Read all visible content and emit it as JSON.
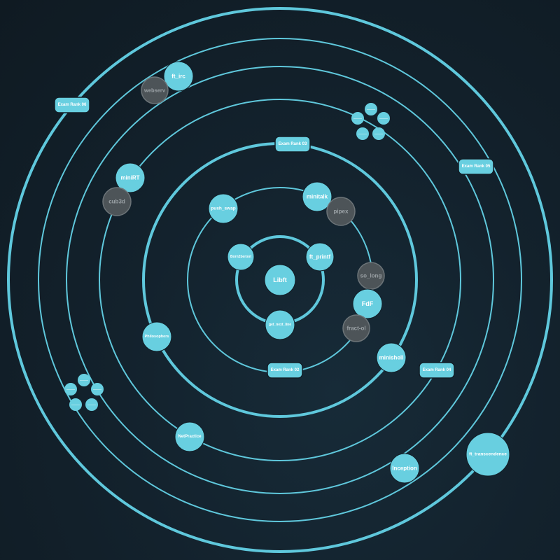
{
  "colors": {
    "background": "#121e27",
    "ring": "#5fc8dc",
    "node_available": "#68cfe0",
    "node_locked": "#4d5458",
    "node_locked_border": "#6c7478",
    "label_available": "#ffffff",
    "label_locked": "#9aa1a5"
  },
  "graph": {
    "projects": [
      {
        "id": "libft",
        "label": "Libft",
        "status": "available"
      },
      {
        "id": "born2beroot",
        "label": "Born2beroot",
        "status": "available"
      },
      {
        "id": "ft-printf",
        "label": "ft_printf",
        "status": "available"
      },
      {
        "id": "get-next-line",
        "label": "get_next_line",
        "status": "available"
      },
      {
        "id": "push-swap",
        "label": "push_swap",
        "status": "available"
      },
      {
        "id": "minitalk",
        "label": "minitalk",
        "status": "available"
      },
      {
        "id": "pipex",
        "label": "pipex",
        "status": "locked"
      },
      {
        "id": "so-long",
        "label": "so_long",
        "status": "locked"
      },
      {
        "id": "fdf",
        "label": "FdF",
        "status": "available"
      },
      {
        "id": "fract-ol",
        "label": "fract-ol",
        "status": "locked"
      },
      {
        "id": "minishell",
        "label": "minishell",
        "status": "available"
      },
      {
        "id": "philosophers",
        "label": "Philosophers",
        "status": "available"
      },
      {
        "id": "minirt",
        "label": "miniRT",
        "status": "available"
      },
      {
        "id": "cub3d",
        "label": "cub3d",
        "status": "locked"
      },
      {
        "id": "netpractice",
        "label": "NetPractice",
        "status": "available"
      },
      {
        "id": "ft-irc",
        "label": "ft_irc",
        "status": "available"
      },
      {
        "id": "webserv",
        "label": "webserv",
        "status": "locked"
      },
      {
        "id": "inception",
        "label": "Inception",
        "status": "available"
      },
      {
        "id": "ft-transcendence",
        "label": "ft_transcendence",
        "status": "available"
      }
    ],
    "exams": [
      {
        "id": "exam-rank-02",
        "label": "Exam Rank 02"
      },
      {
        "id": "exam-rank-03",
        "label": "Exam Rank 03"
      },
      {
        "id": "exam-rank-04",
        "label": "Exam Rank 04"
      },
      {
        "id": "exam-rank-05",
        "label": "Exam Rank 05"
      },
      {
        "id": "exam-rank-06",
        "label": "Exam Rank 06"
      }
    ],
    "clusters": [
      {
        "id": "upper-right-cluster",
        "labels": [
          "———",
          "———",
          "———",
          "———",
          "———"
        ]
      },
      {
        "id": "lower-left-cluster",
        "labels": [
          "———",
          "———",
          "———",
          "———",
          "———"
        ]
      }
    ]
  }
}
